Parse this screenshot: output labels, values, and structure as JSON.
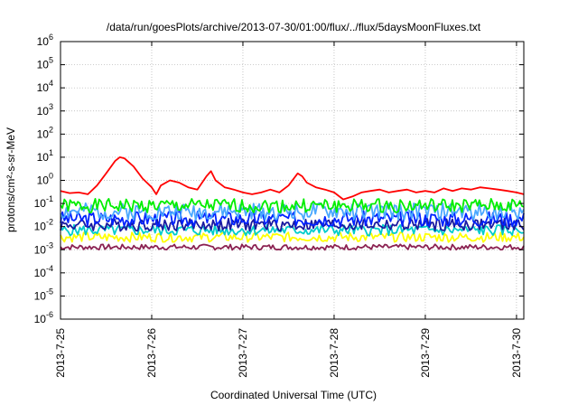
{
  "chart_data": {
    "type": "line",
    "title": "/data/run/goesPlots/archive/2013-07-30/01:00/flux/../flux/5daysMoonFluxes.txt",
    "xlabel": "Coordinated Universal Time (UTC)",
    "ylabel": "protons/cm²-s-sr-MeV",
    "x_domain_days": [
      0,
      5.08
    ],
    "y_scale": "log",
    "ylim": [
      1e-06,
      1000000.0
    ],
    "grid": true,
    "x_ticks": [
      {
        "pos": 0,
        "label": "2013-7-25"
      },
      {
        "pos": 1,
        "label": "2013-7-26"
      },
      {
        "pos": 2,
        "label": "2013-7-27"
      },
      {
        "pos": 3,
        "label": "2013-7-28"
      },
      {
        "pos": 4,
        "label": "2013-7-29"
      },
      {
        "pos": 5,
        "label": "2013-7-30"
      }
    ],
    "y_ticks": [
      {
        "exp": -6,
        "label": "10",
        "sup": "-6"
      },
      {
        "exp": -5,
        "label": "10",
        "sup": "-5"
      },
      {
        "exp": -4,
        "label": "10",
        "sup": "-4"
      },
      {
        "exp": -3,
        "label": "10",
        "sup": "-3"
      },
      {
        "exp": -2,
        "label": "10",
        "sup": "-2"
      },
      {
        "exp": -1,
        "label": "10",
        "sup": "-1"
      },
      {
        "exp": 0,
        "label": "10",
        "sup": "0"
      },
      {
        "exp": 1,
        "label": "10",
        "sup": "1"
      },
      {
        "exp": 2,
        "label": "10",
        "sup": "2"
      },
      {
        "exp": 3,
        "label": "10",
        "sup": "3"
      },
      {
        "exp": 4,
        "label": "10",
        "sup": "4"
      },
      {
        "exp": 5,
        "label": "10",
        "sup": "5"
      },
      {
        "exp": 6,
        "label": "10",
        "sup": "6"
      }
    ],
    "series": [
      {
        "color": "#ff0000",
        "x": [
          0.0,
          0.1,
          0.2,
          0.3,
          0.4,
          0.5,
          0.6,
          0.65,
          0.7,
          0.8,
          0.9,
          1.0,
          1.05,
          1.1,
          1.2,
          1.3,
          1.4,
          1.5,
          1.6,
          1.65,
          1.7,
          1.8,
          1.9,
          2.0,
          2.1,
          2.2,
          2.3,
          2.4,
          2.5,
          2.6,
          2.65,
          2.7,
          2.8,
          2.9,
          3.0,
          3.1,
          3.2,
          3.3,
          3.4,
          3.5,
          3.6,
          3.7,
          3.8,
          3.9,
          4.0,
          4.1,
          4.2,
          4.3,
          4.4,
          4.5,
          4.6,
          4.7,
          4.8,
          4.9,
          5.0,
          5.08
        ],
        "y": [
          0.35,
          0.28,
          0.3,
          0.25,
          0.6,
          2.0,
          7.0,
          10.0,
          9.0,
          4.0,
          1.2,
          0.5,
          0.25,
          0.6,
          1.0,
          0.8,
          0.5,
          0.4,
          1.5,
          2.5,
          1.0,
          0.5,
          0.4,
          0.3,
          0.25,
          0.3,
          0.4,
          0.3,
          0.6,
          2.0,
          1.5,
          0.8,
          0.5,
          0.4,
          0.3,
          0.15,
          0.2,
          0.3,
          0.35,
          0.4,
          0.3,
          0.35,
          0.4,
          0.3,
          0.35,
          0.3,
          0.45,
          0.35,
          0.45,
          0.4,
          0.5,
          0.45,
          0.4,
          0.35,
          0.3,
          0.25
        ]
      },
      {
        "color": "#00ee00",
        "base": 0.08,
        "amp": 0.5,
        "seed": 1
      },
      {
        "color": "#4aa8ff",
        "base": 0.045,
        "amp": 0.6,
        "seed": 2
      },
      {
        "color": "#0022ff",
        "base": 0.022,
        "amp": 0.55,
        "seed": 3
      },
      {
        "color": "#1a1aa0",
        "base": 0.012,
        "amp": 0.45,
        "seed": 4
      },
      {
        "color": "#00cccc",
        "base": 0.007,
        "amp": 0.4,
        "seed": 5
      },
      {
        "color": "#ffff00",
        "base": 0.0035,
        "amp": 0.35,
        "seed": 6
      },
      {
        "color": "#8b2252",
        "base": 0.0013,
        "amp": 0.2,
        "seed": 7
      }
    ]
  }
}
